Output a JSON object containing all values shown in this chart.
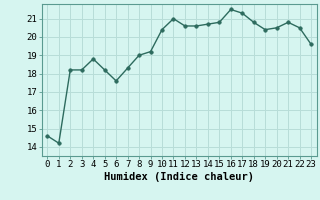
{
  "x": [
    0,
    1,
    2,
    3,
    4,
    5,
    6,
    7,
    8,
    9,
    10,
    11,
    12,
    13,
    14,
    15,
    16,
    17,
    18,
    19,
    20,
    21,
    22,
    23
  ],
  "y": [
    14.6,
    14.2,
    18.2,
    18.2,
    18.8,
    18.2,
    17.6,
    18.3,
    19.0,
    19.2,
    20.4,
    21.0,
    20.6,
    20.6,
    20.7,
    20.8,
    21.5,
    21.3,
    20.8,
    20.4,
    20.5,
    20.8,
    20.5,
    19.6
  ],
  "line_color": "#2d6b5e",
  "marker": "o",
  "marker_size": 2.5,
  "bg_color": "#d6f5f0",
  "grid_color": "#b8ddd8",
  "xlabel": "Humidex (Indice chaleur)",
  "ylim": [
    13.5,
    21.8
  ],
  "xlim": [
    -0.5,
    23.5
  ],
  "yticks": [
    14,
    15,
    16,
    17,
    18,
    19,
    20,
    21
  ],
  "xticks": [
    0,
    1,
    2,
    3,
    4,
    5,
    6,
    7,
    8,
    9,
    10,
    11,
    12,
    13,
    14,
    15,
    16,
    17,
    18,
    19,
    20,
    21,
    22,
    23
  ],
  "xlabel_fontsize": 7.5,
  "tick_fontsize": 6.5,
  "line_width": 1.0,
  "spine_color": "#5a9a90"
}
